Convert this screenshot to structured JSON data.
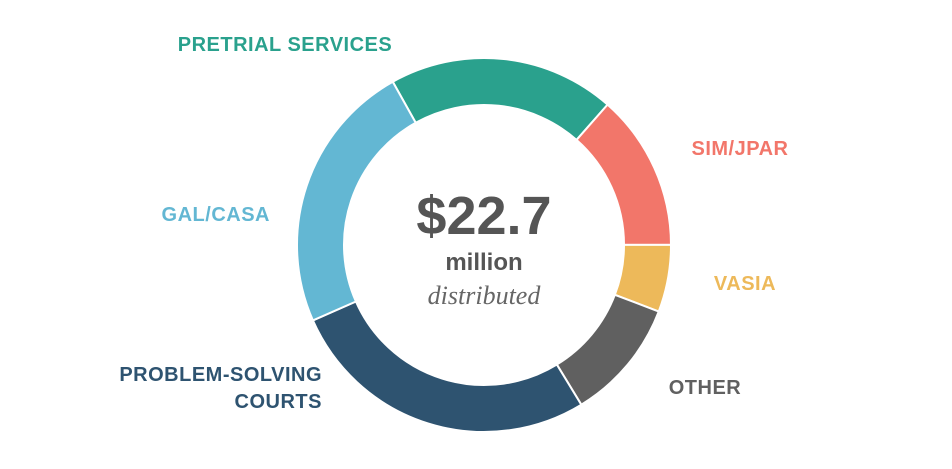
{
  "chart_data": {
    "type": "donut",
    "categories": [
      "PRETRIAL SERVICES",
      "SIM/JPAR",
      "VASIA",
      "OTHER",
      "PROBLEM-SOLVING COURTS",
      "GAL/CASA"
    ],
    "values": [
      19.6,
      13.5,
      5.8,
      10.5,
      27.1,
      23.5
    ],
    "colors": [
      "#2aa18d",
      "#f2766a",
      "#edb95a",
      "#606060",
      "#2e5370",
      "#63b7d3"
    ],
    "center_value": "$22.7",
    "center_unit": "million",
    "center_note": "distributed"
  }
}
